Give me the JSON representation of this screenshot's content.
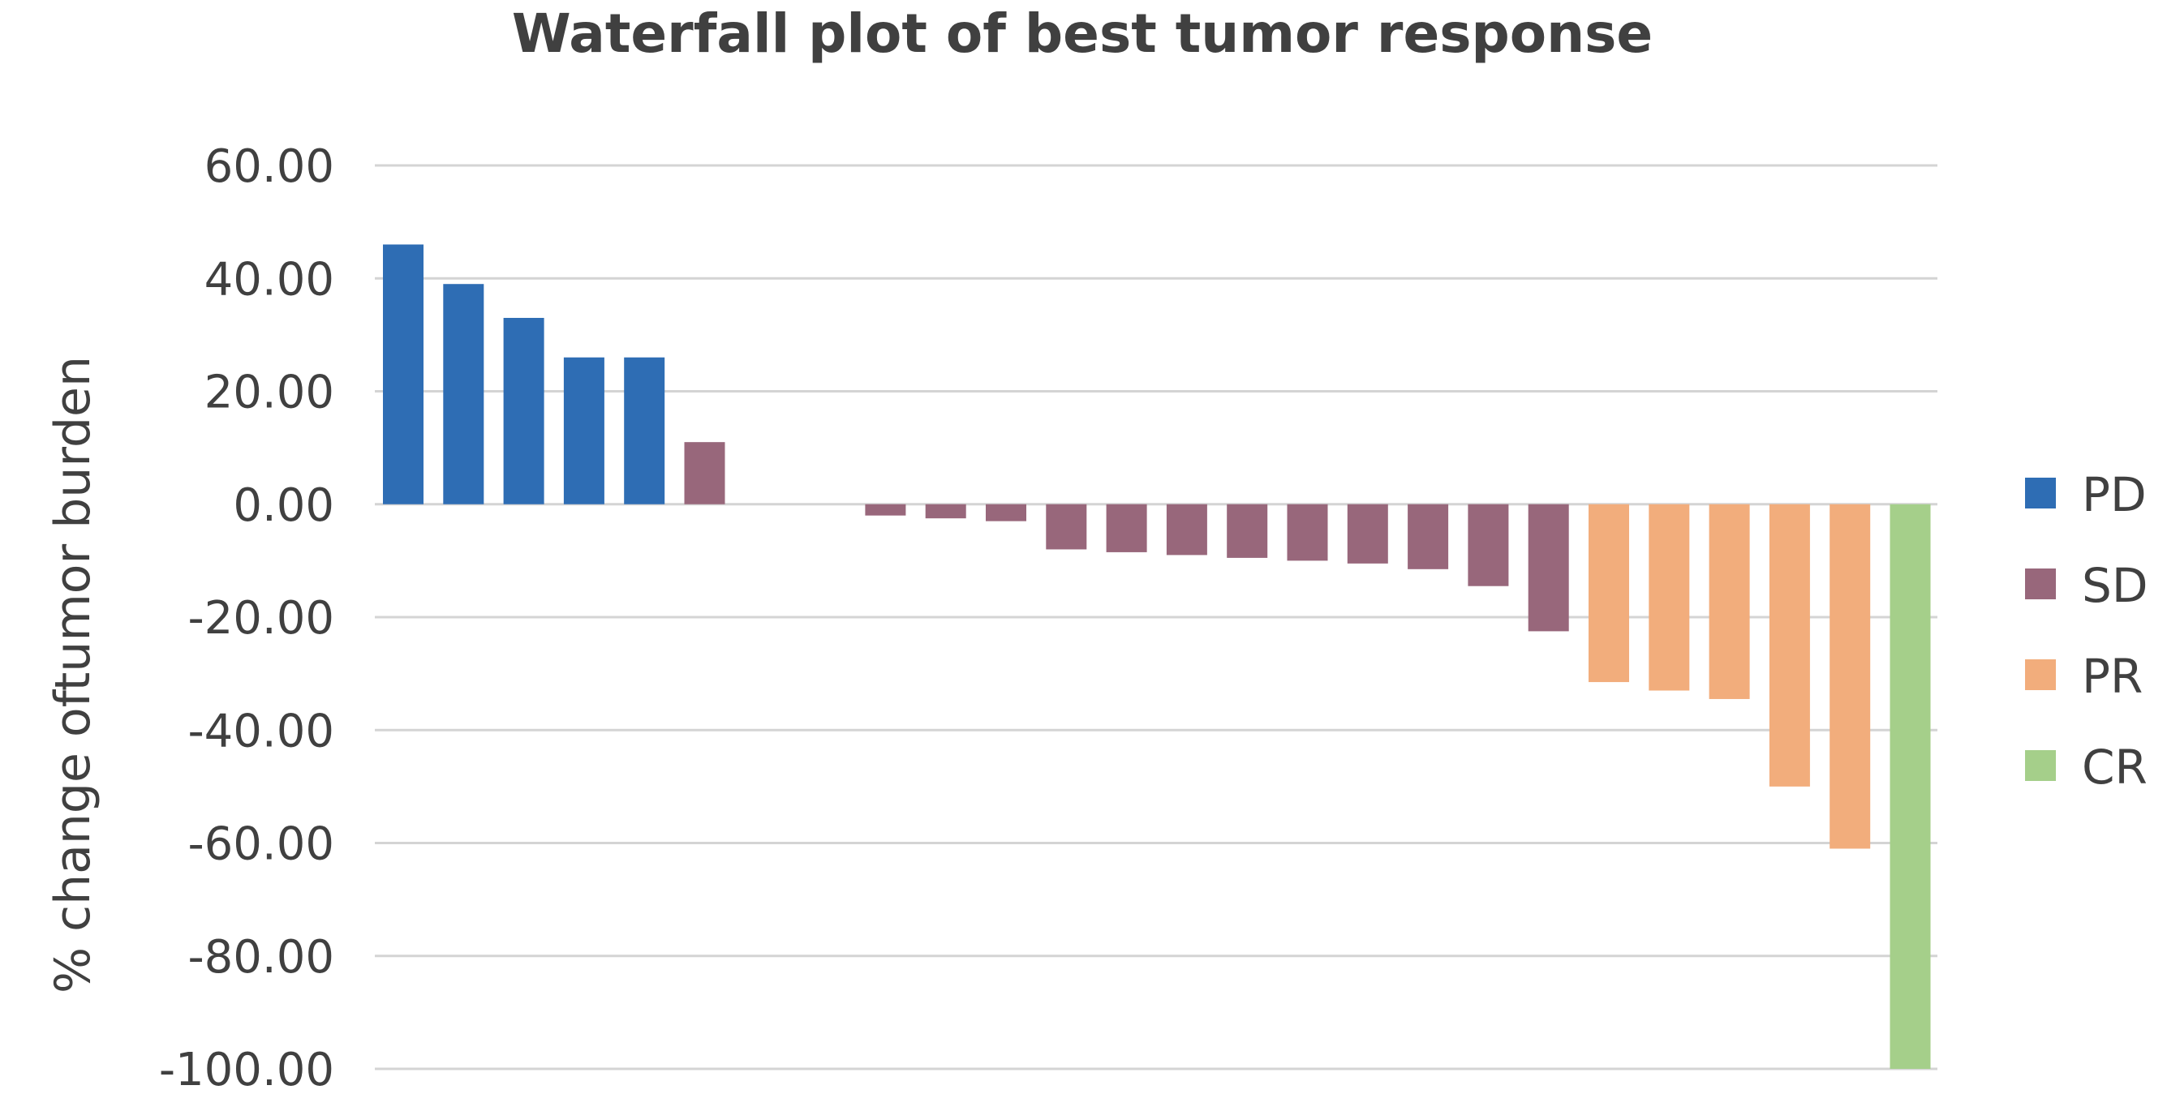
{
  "chart_data": {
    "type": "bar",
    "title": "Waterfall plot of best tumor response",
    "xlabel": "",
    "ylabel": "% change oftumor burden",
    "ylim": [
      -100,
      60
    ],
    "yticks": [
      60,
      40,
      20,
      0,
      -20,
      -40,
      -60,
      -80,
      -100
    ],
    "ytick_labels": [
      "60.00",
      "40.00",
      "20.00",
      "0.00",
      "-20.00",
      "-40.00",
      "-60.00",
      "-80.00",
      "-100.00"
    ],
    "grid": true,
    "legend_position": "right",
    "categories_colors": {
      "PD": "#2e6db4",
      "SD": "#98677b",
      "PR": "#f2ad7c",
      "CR": "#a5cf8a"
    },
    "legend": [
      "PD",
      "SD",
      "PR",
      "CR"
    ],
    "bars": [
      {
        "value": 46,
        "group": "PD"
      },
      {
        "value": 39,
        "group": "PD"
      },
      {
        "value": 33,
        "group": "PD"
      },
      {
        "value": 26,
        "group": "PD"
      },
      {
        "value": 26,
        "group": "PD"
      },
      {
        "value": 11,
        "group": "SD"
      },
      {
        "value": 0,
        "group": "SD"
      },
      {
        "value": 0,
        "group": "SD"
      },
      {
        "value": -2,
        "group": "SD"
      },
      {
        "value": -2.5,
        "group": "SD"
      },
      {
        "value": -3,
        "group": "SD"
      },
      {
        "value": -8,
        "group": "SD"
      },
      {
        "value": -8.5,
        "group": "SD"
      },
      {
        "value": -9,
        "group": "SD"
      },
      {
        "value": -9.5,
        "group": "SD"
      },
      {
        "value": -10,
        "group": "SD"
      },
      {
        "value": -10.5,
        "group": "SD"
      },
      {
        "value": -11.5,
        "group": "SD"
      },
      {
        "value": -14.5,
        "group": "SD"
      },
      {
        "value": -22.5,
        "group": "SD"
      },
      {
        "value": -31.5,
        "group": "PR"
      },
      {
        "value": -33,
        "group": "PR"
      },
      {
        "value": -34.5,
        "group": "PR"
      },
      {
        "value": -50,
        "group": "PR"
      },
      {
        "value": -61,
        "group": "PR"
      },
      {
        "value": -100,
        "group": "CR"
      }
    ]
  }
}
